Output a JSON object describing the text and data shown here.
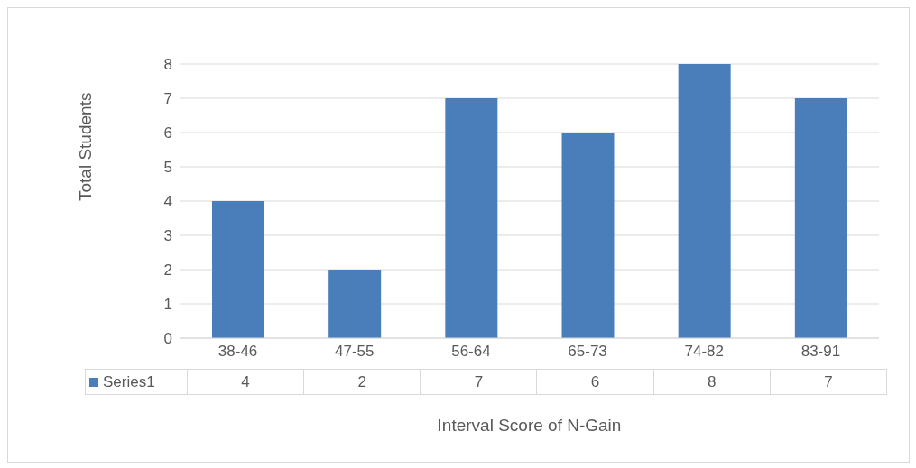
{
  "chart_data": {
    "type": "bar",
    "xlabel": "Interval Score of N-Gain",
    "ylabel": "Total Students",
    "categories": [
      "38-46",
      "47-55",
      "56-64",
      "65-73",
      "74-82",
      "83-91"
    ],
    "series": [
      {
        "name": "Series1",
        "color": "#4a7ebb",
        "values": [
          4,
          2,
          7,
          6,
          8,
          7
        ]
      }
    ],
    "ylim": [
      0,
      8
    ],
    "yticks": [
      0,
      1,
      2,
      3,
      4,
      5,
      6,
      7,
      8
    ],
    "grid": "y",
    "data_labels": true
  }
}
